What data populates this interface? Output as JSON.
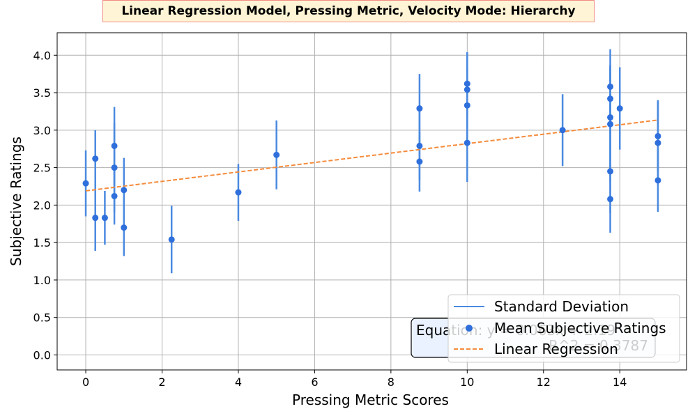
{
  "chart_data": {
    "type": "scatter",
    "title": "Linear Regression Model, Pressing Metric, Velocity Mode: Hierarchy",
    "xlabel": "Pressing Metric Scores",
    "ylabel": "Subjective Ratings",
    "xlim": [
      -0.75,
      15.75
    ],
    "ylim": [
      -0.2,
      4.3
    ],
    "xticks": [
      0,
      2,
      4,
      6,
      8,
      10,
      12,
      14
    ],
    "yticks": [
      0.0,
      0.5,
      1.0,
      1.5,
      2.0,
      2.5,
      3.0,
      3.5,
      4.0
    ],
    "grid": true,
    "legend_position": "lower right",
    "legend": [
      "Standard Deviation",
      "Mean Subjective Ratings",
      "Linear Regression"
    ],
    "equation_text": "Equation: y = 0.063x + 2.19",
    "r2_text": "R^2 = 0.3787",
    "colors": {
      "points": "#2f6fdc",
      "errorbars": "#4a8ae0",
      "regression": "#f58b3b",
      "title_bg": "#fff5d6",
      "title_border": "#f28b82",
      "equation_bg": "#eaf2ff"
    },
    "points": [
      {
        "x": 0.0,
        "y": 2.29,
        "sd": 0.44
      },
      {
        "x": 0.25,
        "y": 2.62,
        "sd": 0.38
      },
      {
        "x": 0.25,
        "y": 1.83,
        "sd": 0.44
      },
      {
        "x": 0.5,
        "y": 1.83,
        "sd": 0.36
      },
      {
        "x": 0.75,
        "y": 2.79,
        "sd": 0.52
      },
      {
        "x": 0.75,
        "y": 2.5,
        "sd": 0.6
      },
      {
        "x": 0.75,
        "y": 2.12,
        "sd": 0.38
      },
      {
        "x": 1.0,
        "y": 2.2,
        "sd": 0.43
      },
      {
        "x": 1.0,
        "y": 1.7,
        "sd": 0.38
      },
      {
        "x": 2.25,
        "y": 1.54,
        "sd": 0.45
      },
      {
        "x": 4.0,
        "y": 2.17,
        "sd": 0.38
      },
      {
        "x": 5.0,
        "y": 2.67,
        "sd": 0.46
      },
      {
        "x": 8.75,
        "y": 3.29,
        "sd": 0.46
      },
      {
        "x": 8.75,
        "y": 2.79,
        "sd": 0.46
      },
      {
        "x": 8.75,
        "y": 2.58,
        "sd": 0.4
      },
      {
        "x": 10.0,
        "y": 3.62,
        "sd": 0.42
      },
      {
        "x": 10.0,
        "y": 3.54,
        "sd": 0.5
      },
      {
        "x": 10.0,
        "y": 3.33,
        "sd": 0.52
      },
      {
        "x": 10.0,
        "y": 2.83,
        "sd": 0.52
      },
      {
        "x": 12.5,
        "y": 3.0,
        "sd": 0.48
      },
      {
        "x": 13.75,
        "y": 3.58,
        "sd": 0.5
      },
      {
        "x": 13.75,
        "y": 3.42,
        "sd": 0.44
      },
      {
        "x": 13.75,
        "y": 3.17,
        "sd": 0.7
      },
      {
        "x": 13.75,
        "y": 3.08,
        "sd": 0.76
      },
      {
        "x": 13.75,
        "y": 2.45,
        "sd": 0.56
      },
      {
        "x": 13.75,
        "y": 2.08,
        "sd": 0.45
      },
      {
        "x": 14.0,
        "y": 3.29,
        "sd": 0.55
      },
      {
        "x": 15.0,
        "y": 2.92,
        "sd": 0.48
      },
      {
        "x": 15.0,
        "y": 2.83,
        "sd": 0.56
      },
      {
        "x": 15.0,
        "y": 2.33,
        "sd": 0.42
      }
    ],
    "regression": {
      "slope": 0.063,
      "intercept": 2.19,
      "x_range": [
        0,
        15
      ]
    }
  }
}
